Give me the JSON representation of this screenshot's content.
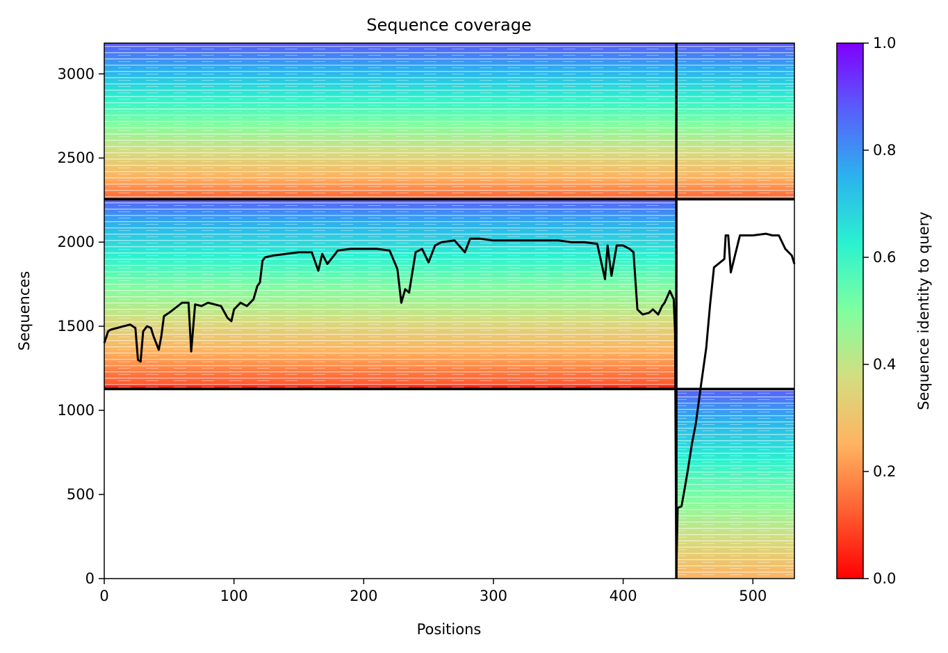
{
  "chart_data": {
    "type": "heatmap",
    "title": "Sequence coverage",
    "xlabel": "Positions",
    "ylabel": "Sequences",
    "xlim": [
      0,
      532
    ],
    "ylim": [
      0,
      3183
    ],
    "x_ticks": [
      0,
      100,
      200,
      300,
      400,
      500
    ],
    "y_ticks": [
      0,
      500,
      1000,
      1500,
      2000,
      2500,
      3000
    ],
    "colorbar": {
      "label": "Sequence identity to query",
      "colormap": "rainbow",
      "range": [
        0,
        1
      ],
      "ticks": [
        "0.0",
        "0.2",
        "0.4",
        "0.6",
        "0.8",
        "1.0"
      ]
    },
    "blocks": [
      {
        "x": [
          0,
          441
        ],
        "y": [
          2255,
          3183
        ],
        "identity": [
          0.15,
          0.88
        ]
      },
      {
        "x": [
          441,
          532
        ],
        "y": [
          2255,
          3183
        ],
        "identity": [
          0.15,
          0.88
        ]
      },
      {
        "x": [
          0,
          441
        ],
        "y": [
          1127,
          2255
        ],
        "identity": [
          0.1,
          0.85
        ]
      },
      {
        "x": [
          441,
          532
        ],
        "y": [
          0,
          1127
        ],
        "identity": [
          0.25,
          0.85
        ]
      }
    ],
    "divider_x": 441,
    "divider_y": [
      1127,
      2255
    ],
    "coverage_line": {
      "x": [
        0,
        3,
        5,
        10,
        15,
        20,
        24,
        26,
        28,
        30,
        33,
        36,
        38,
        40,
        42,
        44,
        46,
        50,
        55,
        60,
        65,
        67,
        70,
        75,
        80,
        90,
        95,
        98,
        100,
        105,
        110,
        115,
        118,
        120,
        122,
        124,
        130,
        140,
        150,
        160,
        165,
        168,
        172,
        180,
        190,
        200,
        210,
        220,
        226,
        229,
        232,
        235,
        240,
        245,
        250,
        255,
        260,
        270,
        278,
        282,
        290,
        300,
        310,
        320,
        330,
        340,
        350,
        360,
        370,
        380,
        386,
        388,
        391,
        395,
        400,
        405,
        408,
        411,
        415,
        420,
        423,
        427,
        430,
        432,
        436,
        439,
        440,
        441,
        442,
        445,
        448,
        450,
        453,
        456,
        460,
        464,
        467,
        470,
        478,
        479,
        481,
        483,
        490,
        500,
        510,
        515,
        518,
        520,
        525,
        530,
        532
      ],
      "y": [
        1400,
        1470,
        1480,
        1490,
        1500,
        1510,
        1490,
        1300,
        1290,
        1470,
        1500,
        1490,
        1440,
        1400,
        1360,
        1440,
        1560,
        1580,
        1610,
        1640,
        1640,
        1350,
        1630,
        1620,
        1640,
        1620,
        1550,
        1530,
        1600,
        1640,
        1620,
        1660,
        1740,
        1760,
        1890,
        1910,
        1920,
        1930,
        1940,
        1940,
        1830,
        1930,
        1870,
        1950,
        1960,
        1960,
        1960,
        1950,
        1840,
        1640,
        1720,
        1700,
        1940,
        1960,
        1880,
        1980,
        2000,
        2010,
        1940,
        2020,
        2020,
        2010,
        2010,
        2010,
        2010,
        2010,
        2010,
        2000,
        2000,
        1990,
        1780,
        1980,
        1800,
        1980,
        1980,
        1960,
        1940,
        1600,
        1570,
        1580,
        1600,
        1570,
        1620,
        1640,
        1710,
        1660,
        1460,
        40,
        420,
        430,
        560,
        650,
        800,
        920,
        1150,
        1370,
        1630,
        1850,
        1900,
        2040,
        2040,
        1820,
        2040,
        2040,
        2050,
        2040,
        2040,
        2040,
        1960,
        1920,
        1870
      ]
    }
  }
}
